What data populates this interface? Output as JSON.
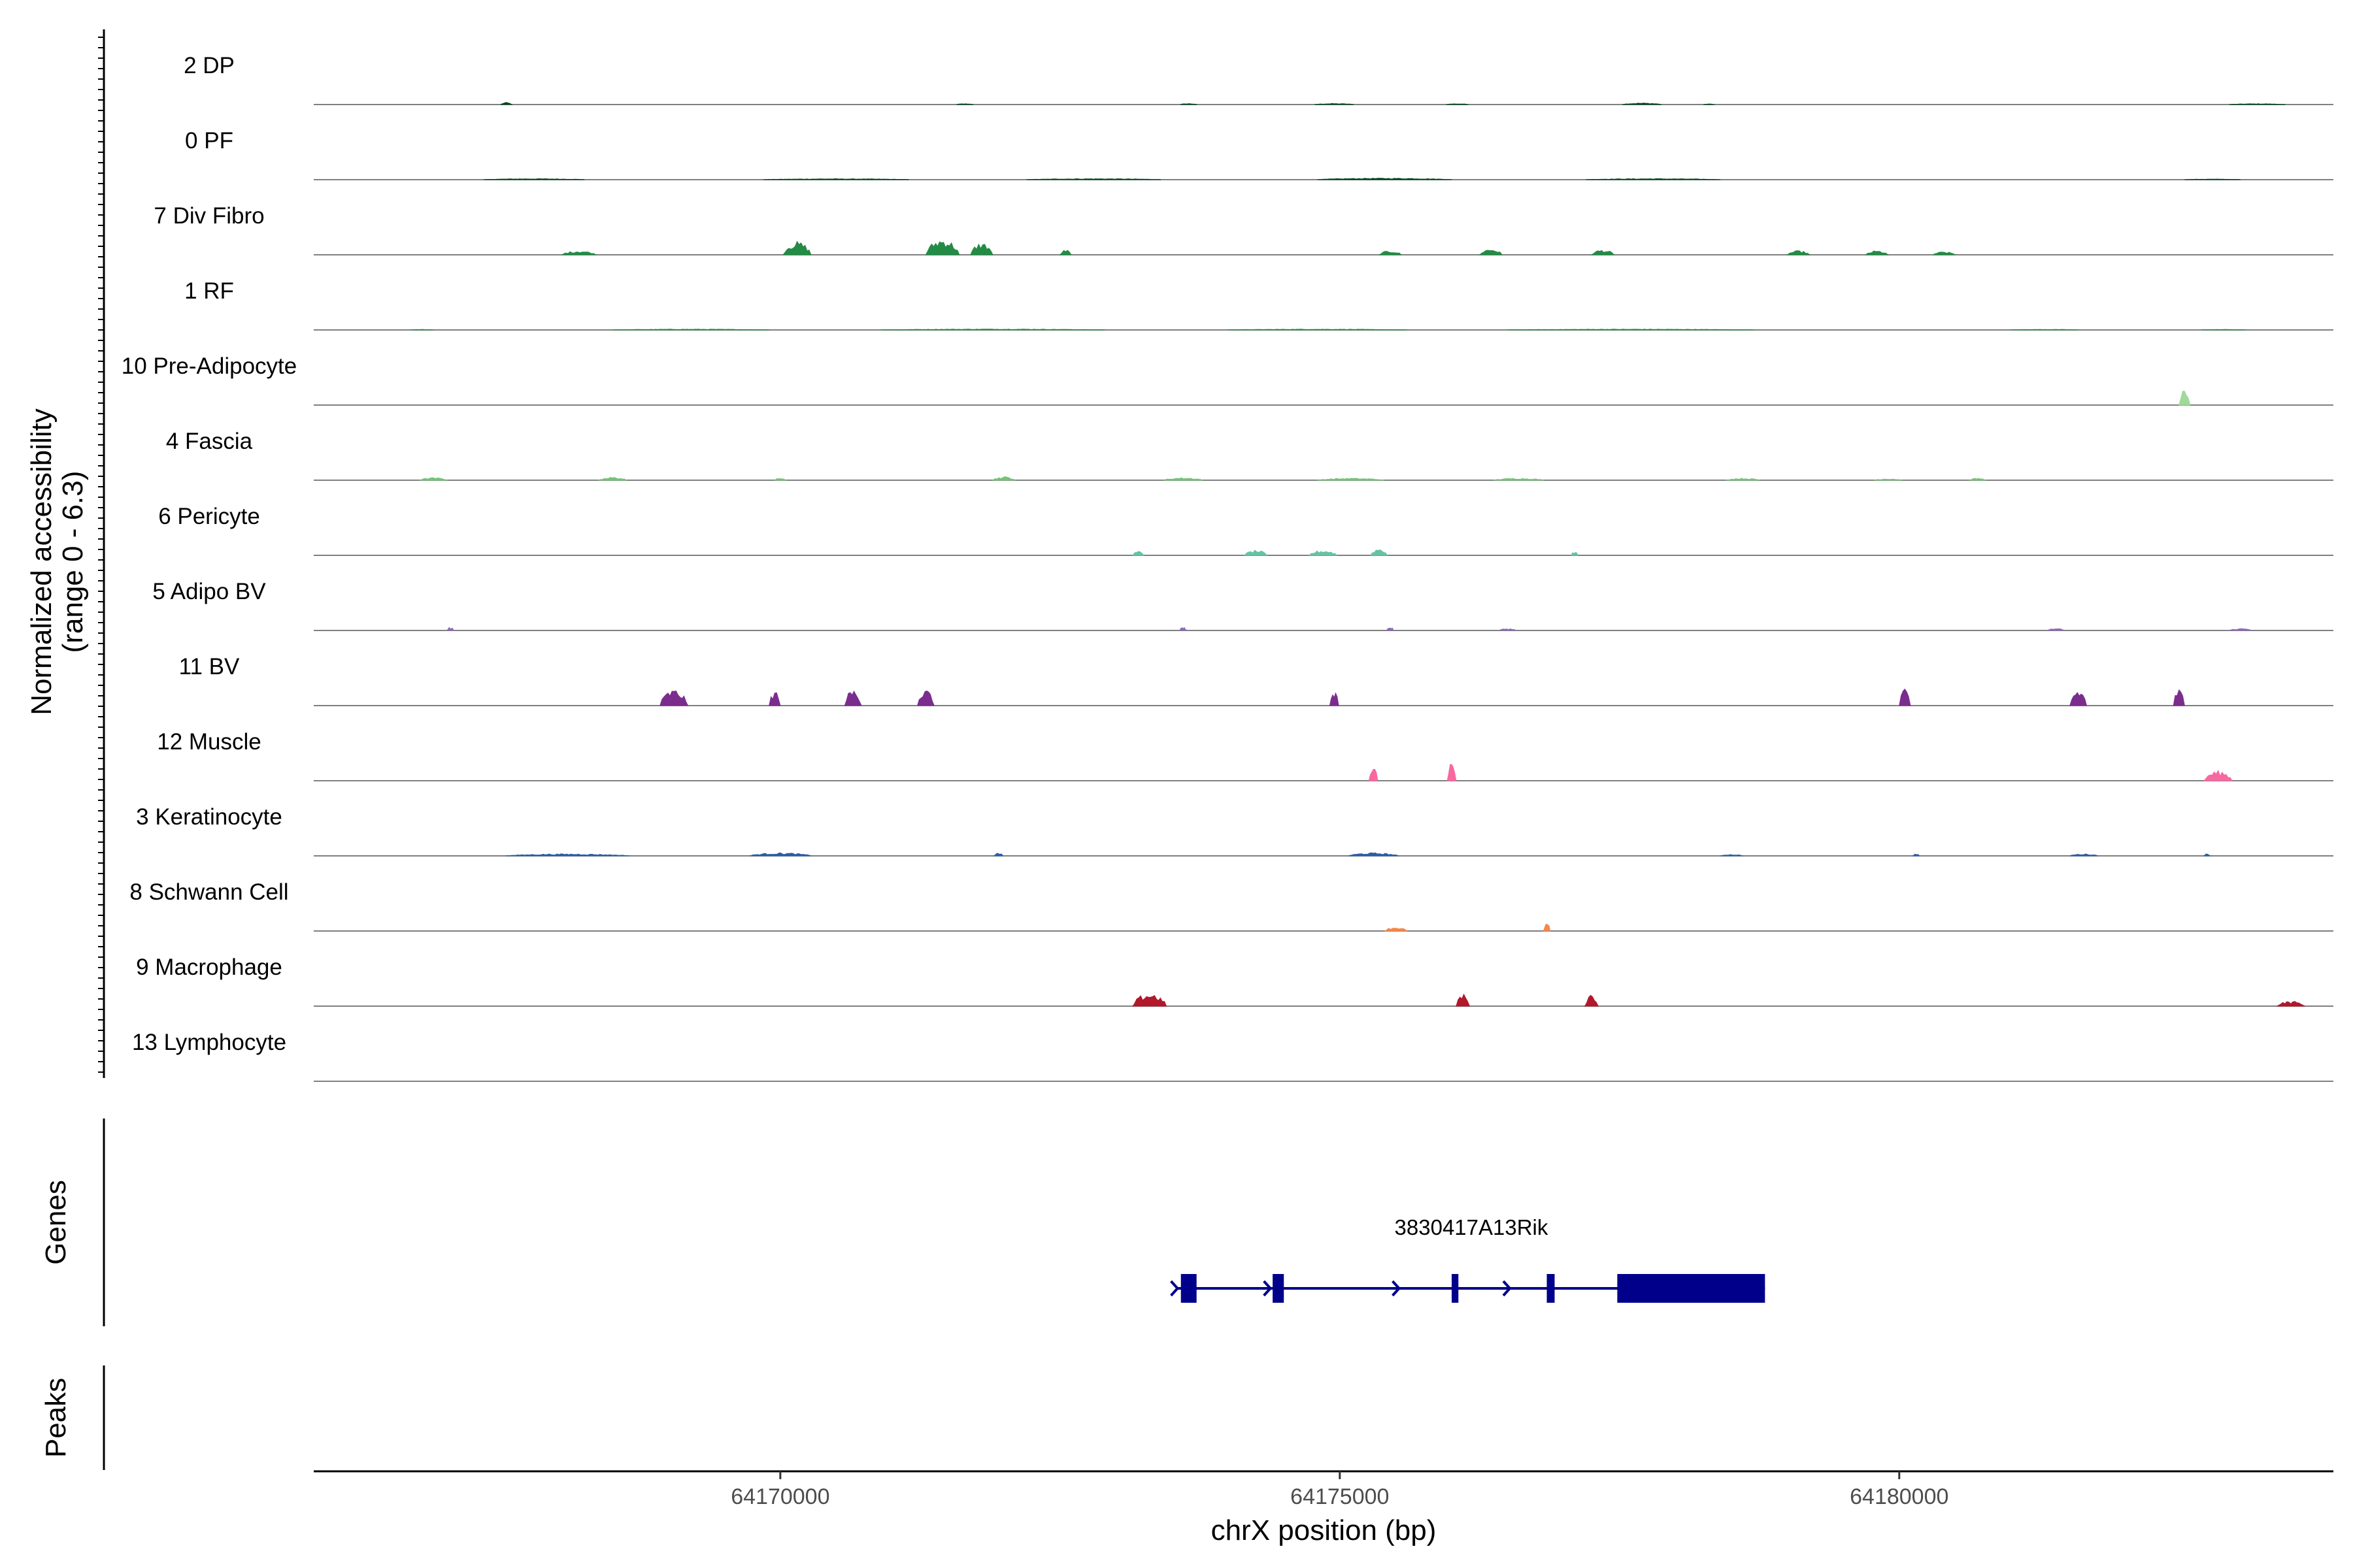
{
  "chart_data": {
    "type": "coverage",
    "title": "",
    "chromosome": "chrX",
    "xlabel": "chrX position (bp)",
    "ylabel": "Normalized accessibility",
    "ylabel_range": "(range 0 - 6.3)",
    "ylim": [
      0,
      6.3
    ],
    "xlim": [
      64165830,
      64183880
    ],
    "xticks": [
      64170000,
      64175000,
      64180000
    ],
    "xtick_labels": [
      "64170000",
      "64175000",
      "64180000"
    ],
    "series": [
      {
        "name": "2 DP",
        "color": "#00441B",
        "peaks": [
          [
            64167.55,
            0.1,
            0.2
          ],
          [
            64171.65,
            0.15,
            0.08
          ],
          [
            64173.65,
            0.15,
            0.1
          ],
          [
            64174.95,
            0.35,
            0.1
          ],
          [
            64176.05,
            0.2,
            0.08
          ],
          [
            64177.7,
            0.35,
            0.15
          ],
          [
            64178.3,
            0.1,
            0.06
          ],
          [
            64183.2,
            0.5,
            0.08
          ]
        ]
      },
      {
        "name": "0 PF",
        "color": "#00441B",
        "peaks": [
          [
            64167.8,
            0.9,
            0.1
          ],
          [
            64170.5,
            1.3,
            0.09
          ],
          [
            64172.8,
            1.2,
            0.1
          ],
          [
            64175.4,
            1.2,
            0.15
          ],
          [
            64177.8,
            1.2,
            0.1
          ],
          [
            64182.8,
            0.5,
            0.06
          ]
        ]
      },
      {
        "name": "7 Div Fibro",
        "color": "#238B45",
        "peaks": [
          [
            64168.2,
            0.3,
            0.4
          ],
          [
            64170.15,
            0.25,
            1.3
          ],
          [
            64171.45,
            0.3,
            1.6
          ],
          [
            64171.8,
            0.2,
            1.2
          ],
          [
            64172.55,
            0.1,
            0.5
          ],
          [
            64175.45,
            0.2,
            0.4
          ],
          [
            64176.35,
            0.2,
            0.6
          ],
          [
            64177.35,
            0.2,
            0.5
          ],
          [
            64179.1,
            0.2,
            0.4
          ],
          [
            64179.8,
            0.2,
            0.4
          ],
          [
            64180.4,
            0.2,
            0.3
          ]
        ]
      },
      {
        "name": "1 RF",
        "color": "#238B45",
        "peaks": [
          [
            64166.8,
            0.2,
            0.05
          ],
          [
            64169.2,
            1.4,
            0.08
          ],
          [
            64171.9,
            2.0,
            0.09
          ],
          [
            64174.8,
            1.6,
            0.08
          ],
          [
            64177.6,
            2.2,
            0.08
          ],
          [
            64181.3,
            0.6,
            0.06
          ],
          [
            64182.9,
            0.4,
            0.05
          ]
        ]
      },
      {
        "name": "10 Pre-Adipocyte",
        "color": "#A1D99B",
        "peaks": [
          [
            64182.55,
            0.1,
            1.5
          ]
        ]
      },
      {
        "name": "4 Fascia",
        "color": "#74C476",
        "peaks": [
          [
            64166.9,
            0.25,
            0.25
          ],
          [
            64168.5,
            0.25,
            0.3
          ],
          [
            64170.0,
            0.1,
            0.3
          ],
          [
            64172.0,
            0.2,
            0.35
          ],
          [
            64173.6,
            0.35,
            0.25
          ],
          [
            64175.1,
            0.6,
            0.2
          ],
          [
            64176.6,
            0.45,
            0.2
          ],
          [
            64178.6,
            0.3,
            0.2
          ],
          [
            64179.9,
            0.25,
            0.15
          ],
          [
            64180.7,
            0.15,
            0.2
          ]
        ]
      },
      {
        "name": "6 Pericyte",
        "color": "#66C2A4",
        "peaks": [
          [
            64173.2,
            0.1,
            0.4
          ],
          [
            64174.25,
            0.2,
            0.5
          ],
          [
            64174.85,
            0.25,
            0.5
          ],
          [
            64175.35,
            0.15,
            0.7
          ],
          [
            64177.1,
            0.06,
            0.4
          ]
        ]
      },
      {
        "name": "5 Adipo BV",
        "color": "#8C6BB1",
        "peaks": [
          [
            64167.05,
            0.06,
            0.35
          ],
          [
            64173.6,
            0.06,
            0.35
          ],
          [
            64175.45,
            0.06,
            0.35
          ],
          [
            64176.5,
            0.15,
            0.2
          ],
          [
            64181.4,
            0.15,
            0.2
          ],
          [
            64183.05,
            0.2,
            0.2
          ]
        ]
      },
      {
        "name": "11 BV",
        "color": "#7B2D8E",
        "peaks": [
          [
            64169.05,
            0.25,
            1.6
          ],
          [
            64169.95,
            0.1,
            1.5
          ],
          [
            64170.65,
            0.15,
            1.6
          ],
          [
            64171.3,
            0.15,
            1.6
          ],
          [
            64174.95,
            0.08,
            1.6
          ],
          [
            64180.05,
            0.1,
            1.6
          ],
          [
            64181.6,
            0.15,
            1.6
          ],
          [
            64182.5,
            0.1,
            1.6
          ]
        ]
      },
      {
        "name": "12 Muscle",
        "color": "#F768A1",
        "peaks": [
          [
            64175.3,
            0.08,
            2.0
          ],
          [
            64176.0,
            0.08,
            2.0
          ],
          [
            64182.85,
            0.25,
            1.0
          ]
        ]
      },
      {
        "name": "3 Keratinocyte",
        "color": "#2B5EA7",
        "peaks": [
          [
            64168.1,
            1.1,
            0.2
          ],
          [
            64170.0,
            0.55,
            0.3
          ],
          [
            64171.95,
            0.08,
            0.3
          ],
          [
            64175.3,
            0.45,
            0.3
          ],
          [
            64178.5,
            0.2,
            0.15
          ],
          [
            64180.15,
            0.06,
            0.2
          ],
          [
            64181.65,
            0.25,
            0.2
          ],
          [
            64182.75,
            0.06,
            0.2
          ]
        ]
      },
      {
        "name": "8 Schwann Cell",
        "color": "#F4874B",
        "peaks": [
          [
            64175.5,
            0.2,
            0.4
          ],
          [
            64176.85,
            0.06,
            0.8
          ]
        ]
      },
      {
        "name": "9 Macrophage",
        "color": "#B2182B",
        "peaks": [
          [
            64173.3,
            0.3,
            1.3
          ],
          [
            64176.1,
            0.12,
            1.2
          ],
          [
            64177.25,
            0.12,
            1.2
          ],
          [
            64183.5,
            0.25,
            0.5
          ]
        ]
      },
      {
        "name": "13 Lymphocyte",
        "color": "#8B0000",
        "peaks": []
      }
    ],
    "genes": {
      "title": "Genes",
      "color": "#00008B",
      "items": [
        {
          "name": "3830417A13Rik",
          "strand": "+",
          "start": 64173550,
          "end": 64178800,
          "exons": [
            [
              64173580,
              64173720
            ],
            [
              64174400,
              64174500
            ],
            [
              64176000,
              64176060
            ],
            [
              64176850,
              64176920
            ],
            [
              64177480,
              64178800
            ]
          ],
          "arrows": [
            64174380,
            64175530,
            64176520
          ]
        }
      ]
    },
    "peaks_track": {
      "title": "Peaks",
      "items": []
    }
  }
}
